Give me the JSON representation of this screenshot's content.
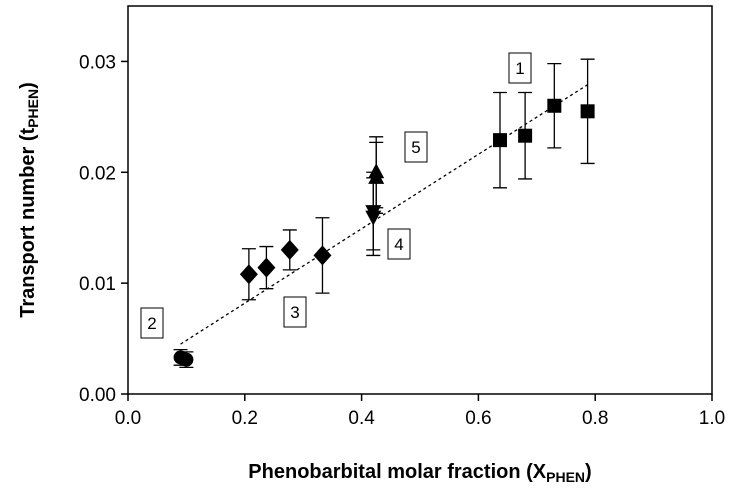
{
  "chart_data": {
    "type": "scatter",
    "xlabel": {
      "text": "Phenobarbital molar fraction (X",
      "sub": "PHEN",
      "end": ")"
    },
    "ylabel": {
      "text": "Transport number (t",
      "sub": "PHEN",
      "end": ")"
    },
    "xlim": [
      0,
      1.0
    ],
    "ylim": [
      0,
      0.035
    ],
    "xticks": [
      {
        "value": 0,
        "label": "0.0"
      },
      {
        "value": 0.2,
        "label": "0.2"
      },
      {
        "value": 0.4,
        "label": "0.4"
      },
      {
        "value": 0.6,
        "label": "0.6"
      },
      {
        "value": 0.8,
        "label": "0.8"
      },
      {
        "value": 1.0,
        "label": "1.0"
      }
    ],
    "yticks": [
      {
        "value": 0,
        "label": "0.00"
      },
      {
        "value": 0.01,
        "label": "0.01"
      },
      {
        "value": 0.02,
        "label": "0.02"
      },
      {
        "value": 0.03,
        "label": "0.03"
      }
    ],
    "series": [
      {
        "name": "1",
        "marker": "square",
        "color": "#000000",
        "x": [
          0.637,
          0.68,
          0.73,
          0.787
        ],
        "values": [
          0.0229,
          0.0233,
          0.026,
          0.0255
        ],
        "errors": [
          0.0043,
          0.0039,
          0.0038,
          0.0047
        ]
      },
      {
        "name": "2",
        "marker": "circle",
        "color": "#000000",
        "x": [
          0.09,
          0.1
        ],
        "values": [
          0.0033,
          0.0031
        ],
        "errors": [
          0.0007,
          0.0007
        ]
      },
      {
        "name": "3",
        "marker": "diamond",
        "color": "#000000",
        "x": [
          0.207,
          0.237,
          0.277,
          0.333
        ],
        "values": [
          0.0108,
          0.0114,
          0.013,
          0.0125
        ],
        "errors": [
          0.0023,
          0.0019,
          0.0018,
          0.0034
        ]
      },
      {
        "name": "4",
        "marker": "triangle-down",
        "color": "#000000",
        "x": [
          0.42,
          0.42
        ],
        "values": [
          0.0165,
          0.016
        ],
        "errors": [
          0.0035,
          0.0035
        ]
      },
      {
        "name": "5",
        "marker": "triangle-up",
        "color": "#000000",
        "x": [
          0.425,
          0.425
        ],
        "values": [
          0.02,
          0.0195
        ],
        "errors": [
          0.0032,
          0.0032
        ]
      }
    ],
    "trend_line": {
      "x": [
        0.09,
        0.79
      ],
      "y": [
        0.0045,
        0.028
      ],
      "color": "#000000"
    }
  }
}
